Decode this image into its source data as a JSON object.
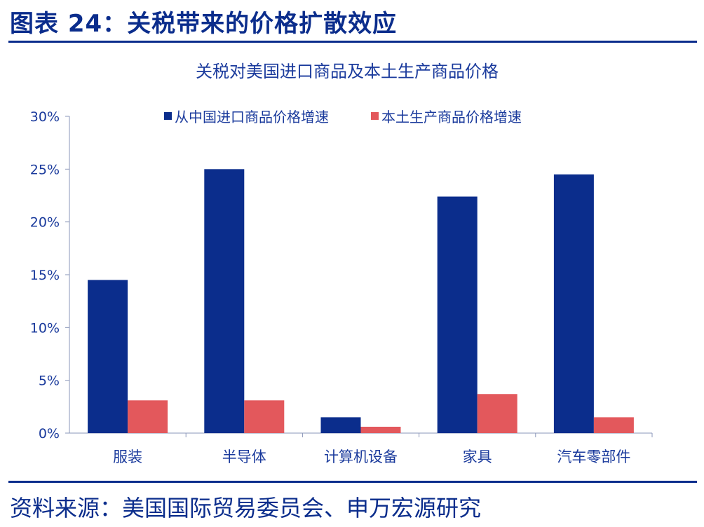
{
  "header": {
    "title": "图表 24：关税带来的价格扩散效应"
  },
  "footer": {
    "source": "资料来源：美国国际贸易委员会、申万宏源研究"
  },
  "colors": {
    "accent": "#0b2d8c",
    "series_1": "#0b2d8c",
    "series_2": "#e3585c"
  },
  "chart_data": {
    "type": "bar",
    "title": "关税对美国进口商品及本土生产商品价格",
    "categories": [
      "服装",
      "半导体",
      "计算机设备",
      "家具",
      "汽车零部件"
    ],
    "series": [
      {
        "name": "从中国进口商品价格增速",
        "values": [
          14.5,
          25.0,
          1.5,
          22.4,
          24.5
        ]
      },
      {
        "name": "本土生产商品价格增速",
        "values": [
          3.1,
          3.1,
          0.6,
          3.7,
          1.5
        ]
      }
    ],
    "y_ticks": [
      "0%",
      "5%",
      "10%",
      "15%",
      "20%",
      "25%",
      "30%"
    ],
    "ylim": [
      0,
      30
    ],
    "grid": false,
    "legend_position": "top"
  }
}
